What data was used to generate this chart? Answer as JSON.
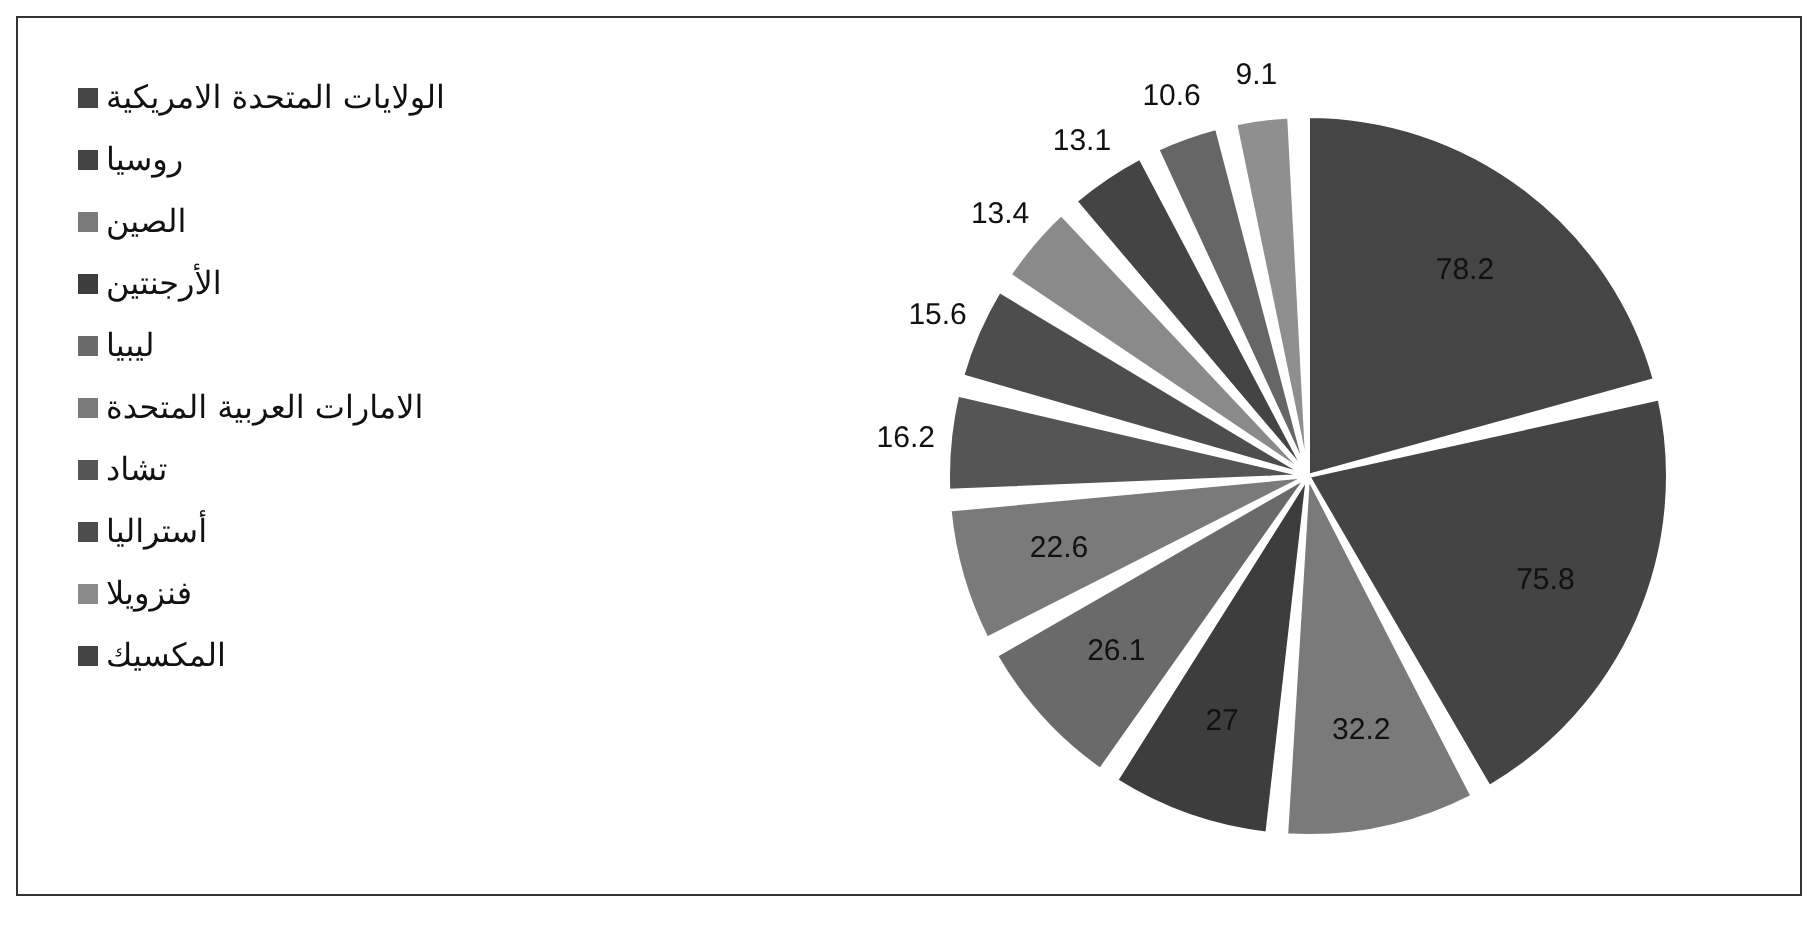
{
  "chart_data": {
    "type": "pie",
    "categories": [
      "الولايات المتحدة الامريكية",
      "روسيا",
      "الصين",
      "الأرجنتين",
      "ليبيا",
      "الامارات العربية المتحدة",
      "تشاد",
      "أستراليا",
      "فنزويلا",
      "المكسيك",
      null,
      null
    ],
    "values": [
      78.2,
      75.8,
      32.2,
      27,
      26.1,
      22.6,
      16.2,
      15.6,
      13.4,
      13.1,
      10.6,
      9.1
    ],
    "colors": [
      "#454545",
      "#444444",
      "#7a7a7a",
      "#3d3d3d",
      "#6a6a6a",
      "#7a7a7a",
      "#555555",
      "#4d4d4d",
      "#8a8a8a",
      "#444444",
      "#666666",
      "#8f8f8f"
    ],
    "data_labels": true,
    "legend": "left"
  }
}
